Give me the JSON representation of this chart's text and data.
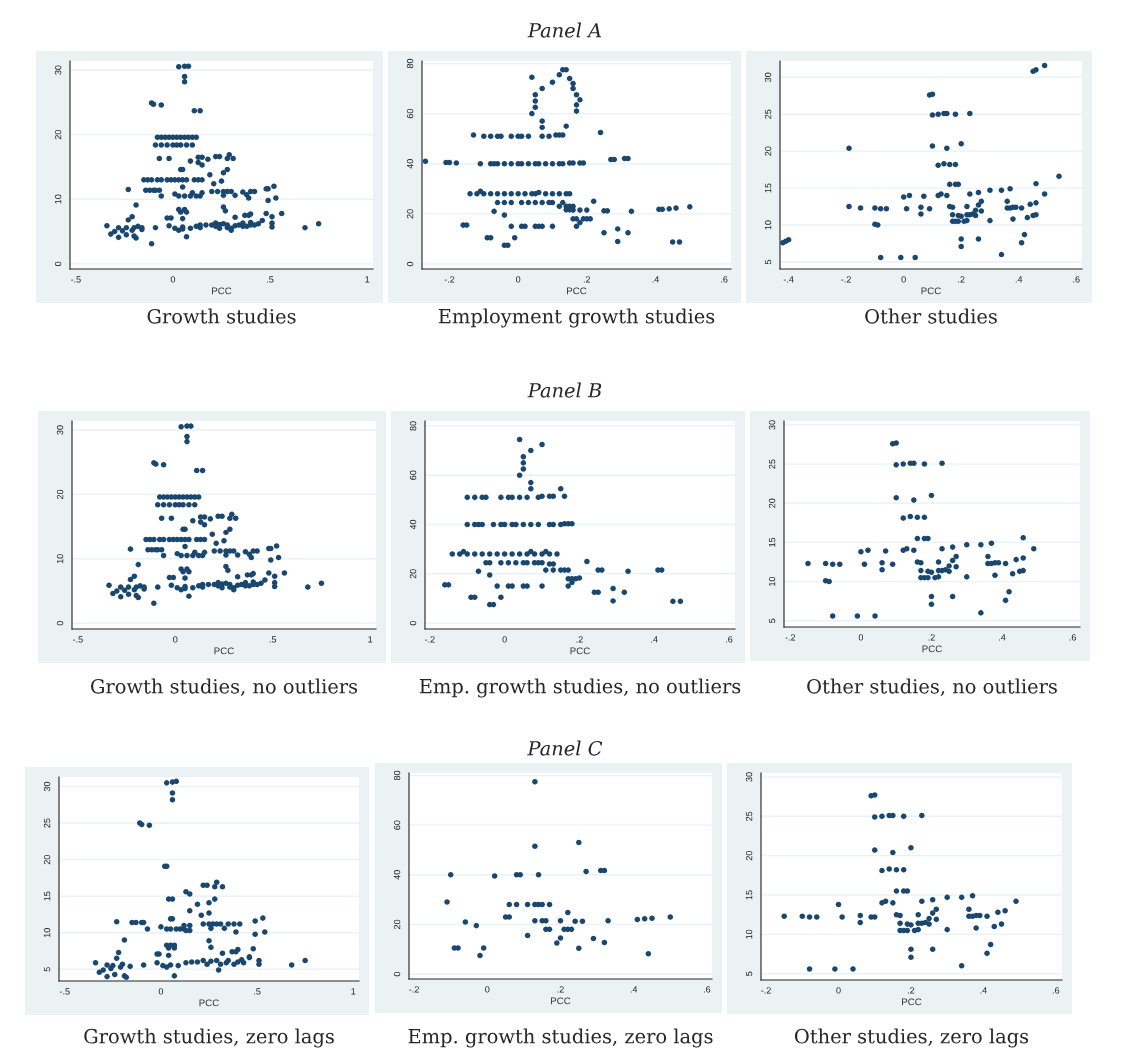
{
  "chart_data": [
    {
      "type": "scatter",
      "title": "Growth studies",
      "xlabel": "PCC",
      "xlim": [
        -0.53,
        1.03
      ],
      "xticks": [
        {
          "value": -0.5,
          "label": "-.5"
        },
        0,
        {
          "value": 0.5,
          "label": ".5"
        },
        1
      ],
      "ylim": [
        -0.8,
        31.4
      ],
      "yticks": [
        0,
        10,
        20,
        30
      ],
      "grid": "y",
      "marker": "circle",
      "color": "#1a476f",
      "x": [
        0.03,
        0.06,
        0.08,
        0.06,
        0.06,
        -0.11,
        -0.1,
        -0.06,
        0.11,
        0.14,
        -0.08,
        -0.06,
        -0.04,
        -0.02,
        0,
        0.02,
        0.04,
        0.06,
        0.08,
        0.1,
        0.12,
        -0.09,
        -0.06,
        -0.03,
        0,
        0.02,
        0.04,
        0.07,
        0.1,
        -0.07,
        -0.02,
        0.09,
        0.13,
        0.15,
        0.13,
        0.15,
        0.18,
        0.22,
        0.24,
        0.29,
        0.28,
        0.31,
        0.04,
        0.05,
        0.28,
        0.26,
        0.19,
        0.21,
        0.25,
        -0.15,
        -0.13,
        -0.11,
        -0.08,
        -0.06,
        -0.03,
        -0.01,
        0.01,
        0.03,
        0.05,
        0.07,
        0.11,
        0.13,
        0.15,
        -0.23,
        -0.14,
        -0.12,
        -0.1,
        -0.09,
        -0.07,
        -0.06,
        0.05,
        0.01,
        0.03,
        0.06,
        0.09,
        0.12,
        0.14,
        0.1,
        0.15,
        0.2,
        0.23,
        0.26,
        0.28,
        0.3,
        0.26,
        0.32,
        0.36,
        0.38,
        0.39,
        0.4,
        0.42,
        0.48,
        0.49,
        0.52,
        0.53,
        0.49,
        -0.19,
        0.03,
        0.06,
        0.04,
        0.07,
        0.26,
        0.27,
        -0.21,
        -0.23,
        -0.03,
        -0.01,
        0.05,
        0.32,
        0.37,
        0.39,
        0.4,
        0.46,
        0.48,
        0.51,
        0.56,
        0.51,
        -0.34,
        -0.32,
        -0.3,
        -0.28,
        -0.28,
        -0.26,
        -0.24,
        -0.24,
        -0.21,
        -0.2,
        -0.2,
        -0.19,
        -0.18,
        -0.16,
        -0.16,
        -0.11,
        -0.09,
        -0.02,
        0.01,
        0.03,
        0.05,
        0.05,
        0.07,
        0.09,
        0.12,
        0.14,
        0.14,
        0.17,
        0.2,
        0.22,
        0.22,
        0.24,
        0.24,
        0.26,
        0.28,
        0.28,
        0.3,
        0.3,
        0.32,
        0.34,
        0.36,
        0.36,
        0.38,
        0.4,
        0.4,
        0.42,
        0.44,
        0.51,
        0.68,
        0.75
      ],
      "values": [
        30.5,
        30.6,
        30.6,
        29,
        28.2,
        24.9,
        24.7,
        24.6,
        23.7,
        23.7,
        19.6,
        19.6,
        19.6,
        19.6,
        19.6,
        19.6,
        19.6,
        19.6,
        19.6,
        19.6,
        19.6,
        18.4,
        18.4,
        18.4,
        18.4,
        18.4,
        18.4,
        18.4,
        18.4,
        16.3,
        16.3,
        15.9,
        16.5,
        16.5,
        15.7,
        15.3,
        16.2,
        16.6,
        16.6,
        16.9,
        16.3,
        16.3,
        14.6,
        14.6,
        14.6,
        14.1,
        13.8,
        12.4,
        12.8,
        13,
        13,
        13,
        13,
        13,
        13,
        13,
        13,
        13,
        13,
        13,
        13,
        13,
        13,
        11.5,
        11.4,
        11.4,
        11.4,
        11.4,
        11.4,
        10.5,
        11.9,
        10.8,
        10.5,
        10.5,
        10.5,
        10.5,
        10.5,
        11,
        11,
        11.2,
        11.2,
        11.2,
        11.2,
        11.2,
        10.6,
        10.6,
        11.1,
        10.7,
        10.2,
        11.2,
        11.2,
        11.6,
        11.6,
        12,
        10.2,
        9.8,
        9.1,
        8.4,
        8.4,
        8,
        8,
        8.8,
        8.2,
        7.3,
        6.8,
        7.1,
        7.1,
        7,
        7.2,
        7.5,
        7.5,
        7.7,
        6.7,
        7.8,
        7.3,
        7.8,
        6.3,
        5.9,
        4.6,
        5,
        5.6,
        4.1,
        5.1,
        5.6,
        4.5,
        5.2,
        5.6,
        4.3,
        4,
        5.8,
        5.3,
        5.6,
        3.1,
        5.6,
        5.9,
        5.5,
        5.2,
        5.7,
        5.4,
        4.2,
        5.5,
        5.8,
        6,
        5.6,
        6,
        6,
        6.3,
        5.8,
        6.1,
        5.5,
        6.2,
        5.6,
        6,
        5.2,
        5.5,
        5.9,
        6,
        5.8,
        6.3,
        5.8,
        6,
        6.4,
        6,
        6.2,
        5.7,
        5.6,
        6.2
      ]
    },
    {
      "type": "scatter",
      "title": "Employment growth studies",
      "subtitle": "Panel A",
      "xlabel": "PCC",
      "xlim": [
        -0.28,
        0.62
      ],
      "xticks": [
        {
          "value": -0.2,
          "label": "-.2"
        },
        0,
        {
          "value": 0.2,
          "label": ".2"
        },
        {
          "value": 0.4,
          "label": ".4"
        },
        {
          "value": 0.6,
          "label": ".6"
        }
      ],
      "ylim": [
        -2,
        81
      ],
      "yticks": [
        0,
        20,
        40,
        60,
        80
      ],
      "grid": "y",
      "marker": "circle",
      "color": "#1a476f",
      "x": [
        -0.27,
        -0.21,
        -0.2,
        -0.18,
        -0.13,
        -0.1,
        -0.08,
        -0.06,
        -0.05,
        -0.02,
        0,
        0.01,
        0.03,
        0.07,
        0.09,
        0.11,
        0.12,
        0.13,
        -0.11,
        -0.08,
        -0.07,
        -0.06,
        -0.04,
        -0.02,
        0,
        0.01,
        0.03,
        0.05,
        0.06,
        0.08,
        0.1,
        0.12,
        0.13,
        0.15,
        0.16,
        0.18,
        0.19,
        0.27,
        0.28,
        0.31,
        0.32,
        0.04,
        0.05,
        0.05,
        0.05,
        0.04,
        0.07,
        0.07,
        0.1,
        0.07,
        0.12,
        0.13,
        0.14,
        0.15,
        0.16,
        0.16,
        0.17,
        0.18,
        0.17,
        0.17,
        0.14,
        0.24,
        -0.14,
        -0.12,
        -0.11,
        -0.1,
        -0.08,
        -0.06,
        -0.04,
        -0.02,
        0,
        0.02,
        0.04,
        0.05,
        0.06,
        0.08,
        0.1,
        0.12,
        0.14,
        0.15,
        -0.06,
        -0.04,
        -0.02,
        0.01,
        0.03,
        0.05,
        0.07,
        0.09,
        0.1,
        0.12,
        0.14,
        0.13,
        0.15,
        0.16,
        0.14,
        0.15,
        0.16,
        0.18,
        0.2,
        0.22,
        0.25,
        0.26,
        0.33,
        0.41,
        0.42,
        0.44,
        0.46,
        0.5,
        0.16,
        0.17,
        0.19,
        0.2,
        0.21,
        0.17,
        0.18,
        -0.07,
        -0.04,
        -0.16,
        -0.15,
        -0.02,
        0.01,
        0.02,
        0.05,
        0.06,
        0.07,
        0.1,
        -0.09,
        -0.08,
        -0.04,
        -0.03,
        -0.01,
        0.25,
        0.29,
        0.29,
        0.32,
        0.45,
        0.47
      ],
      "values": [
        41,
        40.5,
        40.5,
        40.3,
        51.5,
        51,
        51,
        51,
        51,
        51,
        51,
        51,
        51,
        51,
        51,
        51.5,
        51.5,
        51.5,
        40,
        40,
        40,
        40,
        40,
        40,
        40,
        40,
        40,
        40,
        40,
        40,
        40,
        40,
        40,
        40.3,
        40.3,
        40.3,
        40.3,
        41.7,
        41.7,
        42.1,
        42.1,
        74.5,
        67.5,
        65,
        62.5,
        60,
        57,
        54.5,
        72.5,
        70,
        75.5,
        77.5,
        77.5,
        74,
        72,
        70,
        67.5,
        65.5,
        63.5,
        61,
        55,
        52.5,
        28,
        28,
        29,
        28,
        28,
        28,
        28,
        28,
        28,
        28,
        28,
        28,
        28.5,
        28,
        28,
        28,
        28,
        28,
        24.5,
        24.5,
        24.5,
        24.5,
        24.5,
        24.5,
        24.5,
        24.5,
        24.5,
        23,
        23,
        24.5,
        23,
        23,
        21.6,
        21.6,
        21.5,
        21.5,
        21.5,
        25,
        21.2,
        21.2,
        21,
        21.8,
        21.8,
        22,
        22.3,
        22.8,
        18,
        18,
        18,
        18,
        18,
        15,
        16.5,
        21,
        19.5,
        15.5,
        15.5,
        15,
        15,
        15,
        15,
        15,
        15,
        15,
        10.5,
        10.5,
        7.5,
        7.5,
        10.5,
        12.5,
        14,
        9,
        12.5,
        8.8,
        8.8
      ]
    },
    {
      "type": "scatter",
      "title": "Other studies",
      "xlabel": "PCC",
      "xlim": [
        -0.43,
        0.62
      ],
      "xticks": [
        {
          "value": -0.4,
          "label": "-.4"
        },
        {
          "value": -0.2,
          "label": "-.2"
        },
        0,
        {
          "value": 0.2,
          "label": ".2"
        },
        {
          "value": 0.4,
          "label": ".4"
        },
        {
          "value": 0.6,
          "label": ".6"
        }
      ],
      "ylim": [
        4.05,
        32.2
      ],
      "yticks": [
        5,
        10,
        15,
        20,
        25,
        30
      ],
      "grid": "y",
      "marker": "circle",
      "color": "#1a476f",
      "x": [
        -0.42,
        -0.41,
        -0.4,
        -0.19,
        -0.19,
        -0.15,
        -0.1,
        -0.1,
        -0.09,
        -0.08,
        -0.06,
        -0.08,
        -0.01,
        0.04,
        0,
        0.02,
        0.01,
        0.07,
        0.06,
        0.06,
        0.09,
        0.09,
        0.1,
        0.1,
        0.12,
        0.14,
        0.15,
        0.18,
        0.23,
        0.1,
        0.15,
        0.12,
        0.14,
        0.16,
        0.18,
        0.16,
        0.18,
        0.19,
        0.12,
        0.13,
        0.15,
        0.2,
        0.16,
        0.17,
        0.17,
        0.18,
        0.17,
        0.19,
        0.19,
        0.2,
        0.21,
        0.2,
        0.2,
        0.22,
        0.22,
        0.23,
        0.22,
        0.23,
        0.24,
        0.25,
        0.25,
        0.26,
        0.26,
        0.27,
        0.27,
        0.26,
        0.3,
        0.3,
        0.34,
        0.34,
        0.36,
        0.37,
        0.36,
        0.37,
        0.38,
        0.39,
        0.38,
        0.41,
        0.41,
        0.42,
        0.43,
        0.44,
        0.45,
        0.46,
        0.46,
        0.46,
        0.49,
        0.54,
        0.45,
        0.46,
        0.49
      ],
      "values": [
        7.6,
        7.8,
        8,
        20.4,
        12.5,
        12.3,
        12.3,
        10.1,
        10,
        12.2,
        12.2,
        5.6,
        5.6,
        5.6,
        13.8,
        14,
        12.2,
        13.9,
        12.4,
        11.5,
        12.2,
        27.6,
        27.7,
        24.9,
        25,
        25.1,
        25.1,
        25,
        25.1,
        20.7,
        20.4,
        18.1,
        18.3,
        18.2,
        18.2,
        15.5,
        15.5,
        15.5,
        14,
        14.2,
        14,
        21,
        12.5,
        12.4,
        11.4,
        10.5,
        10.5,
        10.5,
        11.3,
        11.2,
        10.5,
        8.1,
        7.1,
        10.6,
        11.4,
        11.4,
        12.5,
        14.2,
        11.5,
        11.3,
        12,
        12.7,
        14.4,
        13.2,
        11.9,
        8.1,
        14.7,
        10.6,
        14.7,
        6,
        12.3,
        12.3,
        13.2,
        14.9,
        12.4,
        12.4,
        10.8,
        12.3,
        7.6,
        8.7,
        11,
        12.8,
        11.3,
        11.4,
        13,
        15.6,
        14.2,
        16.6,
        30.8,
        31,
        31.6
      ]
    },
    {
      "type": "scatter",
      "title": "Growth studies, no outliers",
      "xlabel": "PCC",
      "xlim": [
        -0.53,
        1.03
      ],
      "xticks": [
        {
          "value": -0.5,
          "label": "-.5"
        },
        0,
        {
          "value": 0.5,
          "label": ".5"
        },
        1
      ],
      "ylim": [
        -0.9,
        31.4
      ],
      "yticks": [
        0,
        10,
        20,
        30
      ],
      "grid": "y",
      "marker": "circle",
      "color": "#1a476f",
      "x": [
        0.03,
        0.06,
        0.08,
        0.06,
        0.06,
        -0.11,
        -0.1,
        -0.06,
        0.11,
        0.14,
        -0.08,
        -0.06,
        -0.04,
        -0.02,
        0,
        0.02,
        0.04,
        0.06,
        0.08,
        0.1,
        0.12,
        -0.09,
        -0.06,
        -0.03,
        0,
        0.02,
        0.04,
        0.07,
        0.1,
        -0.07,
        -0.02,
        0.09,
        0.13,
        0.15,
        0.13,
        0.15,
        0.18,
        0.22,
        0.24,
        0.29,
        0.28,
        0.31,
        0.04,
        0.05,
        0.28,
        0.26,
        0.19,
        0.21,
        0.25,
        -0.15,
        -0.13,
        -0.11,
        -0.08,
        -0.06,
        -0.03,
        -0.01,
        0.01,
        0.03,
        0.05,
        0.07,
        0.11,
        0.13,
        0.15,
        -0.23,
        -0.14,
        -0.12,
        -0.1,
        -0.09,
        -0.07,
        -0.06,
        0.05,
        0.01,
        0.03,
        0.06,
        0.09,
        0.12,
        0.14,
        0.1,
        0.15,
        0.2,
        0.23,
        0.26,
        0.28,
        0.3,
        0.26,
        0.32,
        0.36,
        0.38,
        0.39,
        0.4,
        0.42,
        0.48,
        0.49,
        0.52,
        0.53,
        0.49,
        -0.19,
        0.03,
        0.06,
        0.04,
        0.07,
        0.26,
        0.27,
        -0.21,
        -0.23,
        -0.03,
        -0.01,
        0.05,
        0.32,
        0.37,
        0.39,
        0.4,
        0.46,
        0.48,
        0.51,
        0.56,
        0.51,
        -0.34,
        -0.32,
        -0.3,
        -0.28,
        -0.28,
        -0.26,
        -0.24,
        -0.24,
        -0.21,
        -0.2,
        -0.2,
        -0.19,
        -0.18,
        -0.16,
        -0.16,
        -0.11,
        -0.09,
        -0.02,
        0.01,
        0.03,
        0.05,
        0.05,
        0.07,
        0.09,
        0.12,
        0.14,
        0.14,
        0.17,
        0.2,
        0.22,
        0.22,
        0.24,
        0.24,
        0.26,
        0.28,
        0.28,
        0.3,
        0.3,
        0.32,
        0.34,
        0.36,
        0.36,
        0.38,
        0.4,
        0.4,
        0.42,
        0.44,
        0.51,
        0.68,
        0.75
      ],
      "values": [
        30.5,
        30.6,
        30.6,
        29,
        28.2,
        24.9,
        24.7,
        24.6,
        23.7,
        23.7,
        19.6,
        19.6,
        19.6,
        19.6,
        19.6,
        19.6,
        19.6,
        19.6,
        19.6,
        19.6,
        19.6,
        18.4,
        18.4,
        18.4,
        18.4,
        18.4,
        18.4,
        18.4,
        18.4,
        16.3,
        16.3,
        15.9,
        16.5,
        16.5,
        15.7,
        15.3,
        16.2,
        16.6,
        16.6,
        16.9,
        16.3,
        16.3,
        14.6,
        14.6,
        14.6,
        14.1,
        13.8,
        12.4,
        12.8,
        13,
        13,
        13,
        13,
        13,
        13,
        13,
        13,
        13,
        13,
        13,
        13,
        13,
        13,
        11.5,
        11.4,
        11.4,
        11.4,
        11.4,
        11.4,
        10.5,
        11.9,
        10.8,
        10.5,
        10.5,
        10.5,
        10.5,
        10.5,
        11,
        11,
        11.2,
        11.2,
        11.2,
        11.2,
        11.2,
        10.6,
        10.6,
        11.1,
        10.7,
        10.2,
        11.2,
        11.2,
        11.6,
        11.6,
        12,
        10.2,
        9.8,
        9.1,
        8.4,
        8.4,
        8,
        8,
        8.8,
        8.2,
        7.3,
        6.8,
        7.1,
        7.1,
        7,
        7.2,
        7.5,
        7.5,
        7.7,
        6.7,
        7.8,
        7.3,
        7.8,
        6.3,
        5.9,
        4.6,
        5,
        5.6,
        4.1,
        5.1,
        5.6,
        4.5,
        5.2,
        5.6,
        4.3,
        4,
        5.8,
        5.3,
        5.6,
        3.1,
        5.6,
        5.9,
        5.5,
        5.2,
        5.7,
        5.4,
        4.2,
        5.5,
        5.8,
        6,
        5.6,
        6,
        6,
        6.3,
        5.8,
        6.1,
        5.5,
        6.2,
        5.6,
        6,
        5.2,
        5.5,
        5.9,
        6,
        5.8,
        6.3,
        5.8,
        6,
        6.4,
        6,
        6.2,
        5.7,
        5.6,
        6.2
      ]
    },
    {
      "type": "scatter",
      "title": "Emp. growth studies, no outliers",
      "subtitle": "Panel B",
      "xlabel": "PCC",
      "xlim": [
        -0.213,
        0.616
      ],
      "xticks": [
        {
          "value": -0.2,
          "label": "-.2"
        },
        0,
        {
          "value": 0.2,
          "label": ".2"
        },
        {
          "value": 0.4,
          "label": ".4"
        },
        {
          "value": 0.6,
          "label": ".6"
        }
      ],
      "ylim": [
        -2.4,
        82
      ],
      "yticks": [
        0,
        20,
        40,
        60,
        80
      ],
      "grid": "y",
      "marker": "circle",
      "color": "#1a476f",
      "x": [
        0.04,
        0.05,
        0.05,
        0.05,
        0.04,
        0.07,
        0.07,
        0.07,
        0.1,
        0.15,
        -0.1,
        -0.08,
        -0.06,
        -0.05,
        -0.01,
        0.01,
        0.02,
        0.04,
        0.06,
        0.09,
        0.1,
        0.12,
        0.13,
        0.16,
        -0.1,
        -0.08,
        -0.07,
        -0.06,
        -0.03,
        -0.01,
        0,
        0.02,
        0.03,
        0.05,
        0.07,
        0.09,
        0.12,
        0.13,
        0.15,
        0.16,
        0.17,
        0.18,
        -0.14,
        -0.12,
        -0.11,
        -0.1,
        -0.08,
        -0.06,
        -0.04,
        -0.02,
        0,
        0.02,
        0.04,
        0.06,
        0.07,
        0.08,
        0.1,
        0.11,
        0.12,
        0.14,
        -0.05,
        -0.04,
        -0.01,
        0.01,
        0.03,
        0.05,
        0.06,
        0.08,
        0.09,
        0.1,
        0.12,
        0.13,
        0.11,
        0.13,
        0.15,
        0.16,
        0.17,
        0.22,
        0.25,
        0.26,
        0.33,
        0.41,
        0.42,
        0.45,
        0.47,
        0.17,
        0.18,
        0.19,
        0.2,
        0.17,
        0.18,
        0.25,
        0.29,
        0.29,
        0.32,
        0.24,
        -0.07,
        -0.04,
        -0.16,
        -0.15,
        -0.02,
        0.01,
        0.02,
        0.05,
        0.06,
        0.1,
        -0.09,
        -0.08,
        -0.04,
        -0.03,
        -0.01
      ],
      "values": [
        74.5,
        67.5,
        65,
        62.5,
        60,
        57,
        54.5,
        70,
        72.5,
        54.5,
        51,
        51,
        51,
        51,
        51,
        51,
        51,
        51,
        51,
        51,
        51.5,
        51.5,
        51.5,
        51.5,
        40,
        40,
        40,
        40,
        40,
        40,
        40,
        40,
        40,
        40,
        40,
        40,
        40,
        40,
        40,
        40.3,
        40.3,
        40.3,
        28,
        28,
        29,
        28,
        28,
        28,
        28,
        28,
        28,
        28,
        28,
        28,
        29,
        28,
        28,
        29,
        28,
        28,
        24.5,
        24.5,
        24.5,
        24.5,
        24.5,
        24.5,
        24.5,
        24.5,
        24.5,
        24.5,
        24,
        24,
        21.5,
        21.5,
        21.5,
        21.5,
        21.5,
        25,
        21.5,
        21.5,
        21,
        21.5,
        21.5,
        8.8,
        8.8,
        18,
        18,
        18,
        18.3,
        15,
        16.5,
        12.5,
        14,
        9,
        12.5,
        12.5,
        21,
        19.5,
        15.5,
        15.5,
        15,
        15,
        15,
        15,
        15,
        15,
        10.5,
        10.5,
        7.5,
        7.5,
        10.5
      ]
    },
    {
      "type": "scatter",
      "title": "Other studies, no outliers",
      "xlabel": "PCC",
      "xlim": [
        -0.218,
        0.621
      ],
      "xticks": [
        {
          "value": -0.2,
          "label": "-.2"
        },
        0,
        {
          "value": 0.2,
          "label": ".2"
        },
        {
          "value": 0.4,
          "label": ".4"
        },
        {
          "value": 0.6,
          "label": ".6"
        }
      ],
      "ylim": [
        4.2,
        30.5
      ],
      "yticks": [
        5,
        10,
        15,
        20,
        25,
        30
      ],
      "grid": "y",
      "marker": "circle",
      "color": "#1a476f",
      "x": [
        -0.15,
        -0.1,
        -0.1,
        -0.09,
        -0.08,
        -0.06,
        -0.08,
        -0.01,
        0.04,
        0,
        0.02,
        0.01,
        0.07,
        0.06,
        0.06,
        0.09,
        0.09,
        0.1,
        0.1,
        0.12,
        0.14,
        0.15,
        0.18,
        0.23,
        0.1,
        0.15,
        0.12,
        0.14,
        0.16,
        0.18,
        0.16,
        0.18,
        0.19,
        0.12,
        0.13,
        0.15,
        0.2,
        0.16,
        0.17,
        0.17,
        0.18,
        0.17,
        0.19,
        0.19,
        0.2,
        0.21,
        0.2,
        0.2,
        0.22,
        0.22,
        0.23,
        0.22,
        0.23,
        0.24,
        0.25,
        0.25,
        0.26,
        0.26,
        0.27,
        0.27,
        0.26,
        0.3,
        0.3,
        0.34,
        0.34,
        0.36,
        0.37,
        0.36,
        0.37,
        0.38,
        0.39,
        0.38,
        0.41,
        0.41,
        0.42,
        0.43,
        0.44,
        0.45,
        0.46,
        0.46,
        0.46,
        0.49
      ],
      "values": [
        12.3,
        12.3,
        10.1,
        10,
        12.2,
        12.2,
        5.6,
        5.6,
        5.6,
        13.8,
        14,
        12.2,
        13.9,
        12.4,
        11.5,
        12.2,
        27.6,
        27.7,
        24.9,
        25,
        25.1,
        25.1,
        25,
        25.1,
        20.7,
        20.4,
        18.1,
        18.3,
        18.2,
        18.2,
        15.5,
        15.5,
        15.5,
        14,
        14.2,
        14,
        21,
        12.5,
        12.4,
        11.4,
        10.5,
        10.5,
        10.5,
        11.3,
        11.2,
        10.5,
        8.1,
        7.1,
        10.6,
        11.4,
        11.4,
        12.5,
        14.2,
        11.5,
        11.3,
        12,
        12.7,
        14.4,
        13.2,
        11.9,
        8.1,
        14.7,
        10.6,
        14.7,
        6,
        12.3,
        12.3,
        13.2,
        14.9,
        12.4,
        12.4,
        10.8,
        12.3,
        7.6,
        8.7,
        11,
        12.8,
        11.3,
        11.4,
        13,
        15.6,
        14.2
      ]
    },
    {
      "type": "scatter",
      "title": "Growth studies, zero lags",
      "xlabel": "PCC",
      "xlim": [
        -0.53,
        1.03
      ],
      "xticks": [
        {
          "value": -0.5,
          "label": "-.5"
        },
        0,
        {
          "value": 0.5,
          "label": ".5"
        },
        1
      ],
      "ylim": [
        3.4,
        31.3
      ],
      "yticks": [
        5,
        10,
        15,
        20,
        25,
        30
      ],
      "grid": "y",
      "marker": "circle",
      "color": "#1a476f",
      "x": [
        0.03,
        0.06,
        0.08,
        0.06,
        0.06,
        -0.11,
        -0.1,
        -0.06,
        0.02,
        0.03,
        0.22,
        0.24,
        0.29,
        0.28,
        0.32,
        0.13,
        0.15,
        0.04,
        0.06,
        0.28,
        0.25,
        0.19,
        0.15,
        0.21,
        0.25,
        0.05,
        0.06,
        -0.23,
        -0.15,
        -0.13,
        -0.1,
        -0.09,
        -0.07,
        0,
        0.03,
        0.05,
        0.08,
        0.1,
        0.12,
        0.12,
        0.15,
        0.13,
        0.15,
        0.22,
        0.25,
        0.27,
        0.29,
        0.31,
        0.26,
        0.33,
        0.35,
        0.38,
        0.41,
        0.39,
        0.49,
        0.53,
        0.54,
        0.49,
        -0.19,
        0.03,
        0.05,
        0.07,
        0.04,
        0.07,
        0.25,
        0.26,
        -0.22,
        -0.23,
        -0.02,
        -0.01,
        0.04,
        0.32,
        0.37,
        0.39,
        0.4,
        0.46,
        0.48,
        -0.34,
        -0.32,
        -0.3,
        -0.28,
        -0.28,
        -0.26,
        -0.25,
        -0.24,
        -0.21,
        -0.2,
        -0.19,
        -0.18,
        -0.16,
        -0.09,
        -0.02,
        0.01,
        0.03,
        0.05,
        0.07,
        0.09,
        0.13,
        0.16,
        0.19,
        0.22,
        0.24,
        0.26,
        0.29,
        0.3,
        0.31,
        0.34,
        0.35,
        0.38,
        0.4,
        0.42,
        0.43,
        0.46,
        0.51,
        0.51,
        0.68,
        0.75
      ],
      "values": [
        30.5,
        30.6,
        30.7,
        29.1,
        28.2,
        25,
        24.8,
        24.7,
        19.1,
        19.1,
        16.5,
        16.5,
        16.9,
        16.3,
        16.3,
        15.6,
        15.3,
        14.6,
        14.6,
        14.6,
        14.1,
        13.9,
        13,
        12.4,
        12.7,
        11.9,
        11.9,
        11.5,
        11.4,
        11.4,
        11.4,
        11.4,
        10.5,
        10.8,
        10.5,
        10.5,
        10.5,
        10.5,
        10.5,
        11,
        11,
        10.3,
        10.3,
        11.2,
        11.2,
        11.2,
        11.2,
        11.2,
        10.6,
        10.6,
        11.2,
        11.2,
        11.2,
        10.1,
        11.6,
        12,
        10.1,
        9.8,
        9,
        8.3,
        8.3,
        8.3,
        7.9,
        7.9,
        8.9,
        8,
        7.3,
        6.5,
        7.1,
        7.1,
        6.9,
        7.2,
        7.4,
        7.4,
        7.7,
        6.7,
        7.8,
        5.9,
        4.6,
        4.9,
        5.6,
        4,
        5.1,
        5.5,
        4.3,
        5.3,
        5.7,
        4.1,
        3.9,
        5.4,
        5.6,
        5.9,
        5.5,
        5.3,
        5.6,
        4.1,
        5.5,
        5.9,
        6,
        6,
        6.2,
        5.7,
        6.1,
        6.2,
        4.9,
        5.7,
        5.9,
        6.2,
        5.7,
        6,
        6.3,
        5.9,
        6.6,
        5.7,
        6.2,
        5.6,
        6.2
      ]
    },
    {
      "type": "scatter",
      "title": "Emp. growth studies, zero lags",
      "subtitle": "Panel C",
      "xlabel": "PCC",
      "xlim": [
        -0.214,
        0.614
      ],
      "xticks": [
        {
          "value": -0.2,
          "label": "-.2"
        },
        0,
        {
          "value": 0.2,
          "label": ".2"
        },
        {
          "value": 0.4,
          "label": ".4"
        },
        {
          "value": 0.6,
          "label": ".6"
        }
      ],
      "ylim": [
        -2,
        81
      ],
      "yticks": [
        0,
        20,
        40,
        60,
        80
      ],
      "grid": "y",
      "marker": "circle",
      "color": "#1a476f",
      "x": [
        -0.11,
        -0.1,
        -0.06,
        -0.09,
        -0.08,
        -0.03,
        -0.02,
        -0.01,
        0.02,
        0.05,
        0.06,
        0.06,
        0.08,
        0.08,
        0.09,
        0.11,
        0.11,
        0.13,
        0.14,
        0.15,
        0.17,
        0.13,
        0.13,
        0.14,
        0.13,
        0.15,
        0.16,
        0.16,
        0.17,
        0.19,
        0.2,
        0.21,
        0.22,
        0.23,
        0.2,
        0.22,
        0.25,
        0.27,
        0.31,
        0.32,
        0.24,
        0.26,
        0.25,
        0.29,
        0.32,
        0.33,
        0.41,
        0.43,
        0.45,
        0.5,
        0.44
      ],
      "values": [
        29,
        40,
        21,
        10.5,
        10.5,
        19.5,
        7.5,
        10.5,
        39.5,
        23,
        23,
        28,
        28,
        40,
        40,
        28,
        15.5,
        28,
        28,
        28,
        28,
        77.5,
        51.5,
        40,
        21.5,
        21.5,
        21.5,
        18,
        18,
        12.5,
        14.5,
        18,
        18,
        18,
        21.5,
        24.8,
        53,
        41.3,
        41.7,
        41.7,
        21.3,
        21.3,
        10.4,
        14.3,
        12.7,
        21.5,
        22,
        22.3,
        22.5,
        23,
        8.2
      ]
    },
    {
      "type": "scatter",
      "title": "Other studies, zero lags",
      "xlabel": "PCC",
      "xlim": [
        -0.214,
        0.617
      ],
      "xticks": [
        {
          "value": -0.2,
          "label": "-.2"
        },
        0,
        {
          "value": 0.2,
          "label": ".2"
        },
        {
          "value": 0.4,
          "label": ".4"
        },
        {
          "value": 0.6,
          "label": ".6"
        }
      ],
      "ylim": [
        4.2,
        30.5
      ],
      "yticks": [
        5,
        10,
        15,
        20,
        25,
        30
      ],
      "grid": "y",
      "marker": "circle",
      "color": "#1a476f",
      "x": [
        -0.15,
        -0.1,
        -0.08,
        -0.06,
        -0.08,
        -0.01,
        0.04,
        0,
        0.01,
        0.06,
        0.06,
        0.09,
        0.1,
        0.09,
        0.1,
        0.1,
        0.12,
        0.14,
        0.15,
        0.18,
        0.23,
        0.1,
        0.15,
        0.12,
        0.14,
        0.16,
        0.18,
        0.16,
        0.18,
        0.19,
        0.12,
        0.13,
        0.15,
        0.2,
        0.16,
        0.17,
        0.17,
        0.18,
        0.17,
        0.19,
        0.19,
        0.2,
        0.21,
        0.2,
        0.2,
        0.22,
        0.22,
        0.23,
        0.22,
        0.23,
        0.24,
        0.25,
        0.25,
        0.26,
        0.26,
        0.27,
        0.27,
        0.26,
        0.3,
        0.3,
        0.34,
        0.34,
        0.36,
        0.37,
        0.36,
        0.37,
        0.38,
        0.39,
        0.38,
        0.41,
        0.41,
        0.42,
        0.43,
        0.44,
        0.45,
        0.46,
        0.49
      ],
      "values": [
        12.3,
        12.3,
        12.2,
        12.2,
        5.6,
        5.6,
        5.6,
        13.8,
        12.2,
        12.4,
        11.5,
        12.2,
        12.2,
        27.6,
        27.7,
        24.9,
        25,
        25.1,
        25.1,
        25,
        25.1,
        20.7,
        20.4,
        18.1,
        18.3,
        18.2,
        18.2,
        15.5,
        15.5,
        15.5,
        14,
        14.2,
        14,
        21,
        12.5,
        12.4,
        11.4,
        10.5,
        10.5,
        10.5,
        11.3,
        11.2,
        10.5,
        8.1,
        7.1,
        10.6,
        11.4,
        11.4,
        12.5,
        14.2,
        11.5,
        11.3,
        12,
        12.7,
        14.4,
        13.2,
        11.9,
        8.1,
        14.7,
        10.6,
        14.7,
        6,
        12.3,
        12.3,
        13.2,
        14.9,
        12.4,
        12.4,
        10.8,
        12.3,
        7.6,
        8.7,
        11,
        12.8,
        11.3,
        13,
        14.2
      ]
    }
  ]
}
